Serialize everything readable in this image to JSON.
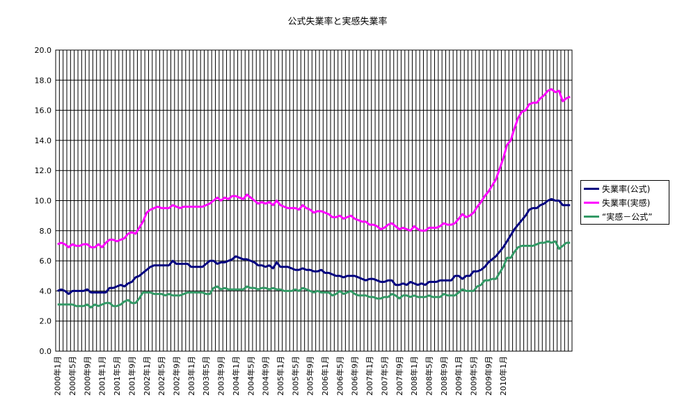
{
  "chart_data": {
    "type": "line",
    "title": "公式失業率と実感失業率",
    "ylim": [
      0,
      20
    ],
    "y_ticks": [
      "0.0",
      "2.0",
      "4.0",
      "6.0",
      "8.0",
      "10.0",
      "12.0",
      "14.0",
      "16.0",
      "18.0",
      "20.0"
    ],
    "x_tick_labels": [
      "2000年1月",
      "2000年5月",
      "2000年9月",
      "2001年1月",
      "2001年5月",
      "2001年9月",
      "2002年1月",
      "2002年5月",
      "2002年9月",
      "2003年1月",
      "2003年5月",
      "2003年9月",
      "2004年1月",
      "2004年5月",
      "2004年9月",
      "2005年1月",
      "2005年5月",
      "2005年9月",
      "2006年1月",
      "2006年5月",
      "2006年9月",
      "2007年1月",
      "2007年5月",
      "2007年9月",
      "2008年1月",
      "2008年5月",
      "2008年9月",
      "2009年1月",
      "2009年5月",
      "2009年9月",
      "2010年1月"
    ],
    "grid": true,
    "legend_position": "right",
    "x_start": "2000年1月",
    "x_end": "2010年3月",
    "series": [
      {
        "name": "失業率(公式)",
        "color": "#000080",
        "values": [
          4.0,
          4.1,
          4.0,
          3.8,
          4.0,
          4.0,
          4.0,
          4.0,
          4.1,
          3.9,
          3.9,
          3.9,
          3.9,
          3.9,
          4.2,
          4.2,
          4.3,
          4.4,
          4.3,
          4.5,
          4.6,
          4.9,
          5.0,
          5.2,
          5.4,
          5.6,
          5.7,
          5.7,
          5.7,
          5.7,
          5.7,
          6.0,
          5.8,
          5.8,
          5.8,
          5.8,
          5.6,
          5.6,
          5.6,
          5.6,
          5.8,
          6.0,
          6.0,
          5.8,
          5.9,
          5.9,
          6.0,
          6.1,
          6.3,
          6.2,
          6.1,
          6.1,
          6.0,
          5.9,
          5.7,
          5.7,
          5.6,
          5.7,
          5.5,
          5.9,
          5.6,
          5.6,
          5.6,
          5.5,
          5.4,
          5.4,
          5.5,
          5.4,
          5.4,
          5.3,
          5.3,
          5.4,
          5.2,
          5.2,
          5.1,
          5.0,
          5.0,
          4.9,
          5.0,
          5.0,
          5.0,
          4.9,
          4.8,
          4.7,
          4.8,
          4.8,
          4.7,
          4.6,
          4.6,
          4.7,
          4.7,
          4.4,
          4.4,
          4.5,
          4.4,
          4.6,
          4.5,
          4.4,
          4.5,
          4.4,
          4.6,
          4.6,
          4.6,
          4.7,
          4.7,
          4.7,
          4.7,
          5.0,
          5.0,
          4.8,
          5.0,
          5.0,
          5.3,
          5.3,
          5.4,
          5.6,
          5.9,
          6.1,
          6.3,
          6.6,
          6.9,
          7.3,
          7.7,
          8.1,
          8.4,
          8.7,
          9.0,
          9.4,
          9.5,
          9.5,
          9.7,
          9.8,
          10.0,
          10.1,
          10.0,
          10.0,
          9.7,
          9.7,
          9.7
        ]
      },
      {
        "name": "失業率(実感)",
        "color": "#ff00ff",
        "values": [
          7.1,
          7.2,
          7.1,
          6.9,
          7.1,
          7.0,
          7.0,
          7.1,
          7.1,
          6.9,
          6.9,
          7.1,
          6.9,
          7.2,
          7.4,
          7.4,
          7.3,
          7.4,
          7.5,
          7.8,
          7.9,
          7.8,
          8.2,
          8.6,
          9.2,
          9.4,
          9.5,
          9.6,
          9.5,
          9.5,
          9.5,
          9.7,
          9.6,
          9.5,
          9.6,
          9.6,
          9.6,
          9.6,
          9.6,
          9.6,
          9.7,
          9.8,
          10.0,
          10.2,
          10.0,
          10.2,
          10.1,
          10.3,
          10.3,
          10.2,
          10.1,
          10.4,
          10.2,
          10.0,
          9.8,
          9.9,
          9.8,
          9.9,
          9.7,
          10.0,
          9.7,
          9.6,
          9.5,
          9.5,
          9.5,
          9.4,
          9.7,
          9.5,
          9.4,
          9.2,
          9.3,
          9.3,
          9.2,
          9.1,
          8.9,
          8.9,
          9.0,
          8.8,
          8.9,
          9.0,
          8.8,
          8.7,
          8.6,
          8.6,
          8.4,
          8.4,
          8.3,
          8.1,
          8.2,
          8.4,
          8.5,
          8.3,
          8.1,
          8.2,
          8.1,
          8.0,
          8.3,
          8.1,
          8.0,
          8.0,
          8.2,
          8.2,
          8.2,
          8.3,
          8.5,
          8.4,
          8.4,
          8.5,
          8.8,
          9.1,
          8.9,
          9.0,
          9.2,
          9.6,
          9.9,
          10.3,
          10.6,
          11.0,
          11.4,
          12.1,
          12.8,
          13.7,
          14.0,
          14.8,
          15.5,
          15.9,
          16.0,
          16.4,
          16.5,
          16.5,
          16.8,
          17.0,
          17.3,
          17.4,
          17.2,
          17.3,
          16.6,
          16.8,
          16.9
        ]
      },
      {
        "name": "“実感－公式”",
        "color": "#339966",
        "values": [
          3.1,
          3.1,
          3.1,
          3.1,
          3.1,
          3.0,
          3.0,
          3.0,
          3.1,
          2.9,
          3.1,
          3.0,
          3.1,
          3.2,
          3.2,
          3.0,
          3.0,
          3.1,
          3.3,
          3.4,
          3.2,
          3.2,
          3.5,
          3.9,
          3.9,
          3.9,
          3.8,
          3.8,
          3.8,
          3.7,
          3.8,
          3.7,
          3.7,
          3.7,
          3.8,
          3.9,
          3.9,
          3.9,
          3.9,
          3.9,
          3.8,
          3.8,
          4.2,
          4.3,
          4.1,
          4.2,
          4.1,
          4.1,
          4.1,
          4.1,
          4.1,
          4.3,
          4.2,
          4.2,
          4.1,
          4.2,
          4.2,
          4.1,
          4.2,
          4.1,
          4.1,
          4.0,
          4.0,
          4.0,
          4.1,
          4.0,
          4.2,
          4.1,
          4.0,
          3.9,
          4.0,
          3.9,
          3.9,
          3.9,
          3.7,
          3.8,
          4.0,
          3.8,
          3.9,
          4.0,
          3.8,
          3.7,
          3.7,
          3.7,
          3.6,
          3.6,
          3.5,
          3.5,
          3.6,
          3.6,
          3.8,
          3.7,
          3.5,
          3.7,
          3.7,
          3.6,
          3.7,
          3.6,
          3.6,
          3.6,
          3.7,
          3.6,
          3.6,
          3.6,
          3.8,
          3.7,
          3.7,
          3.7,
          3.9,
          4.1,
          4.0,
          4.0,
          4.0,
          4.3,
          4.4,
          4.7,
          4.7,
          4.8,
          4.8,
          5.2,
          5.6,
          6.2,
          6.2,
          6.6,
          6.9,
          7.0,
          7.0,
          7.0,
          7.0,
          7.1,
          7.2,
          7.2,
          7.3,
          7.2,
          7.3,
          6.8,
          7.0,
          7.2,
          7.2
        ]
      }
    ]
  }
}
